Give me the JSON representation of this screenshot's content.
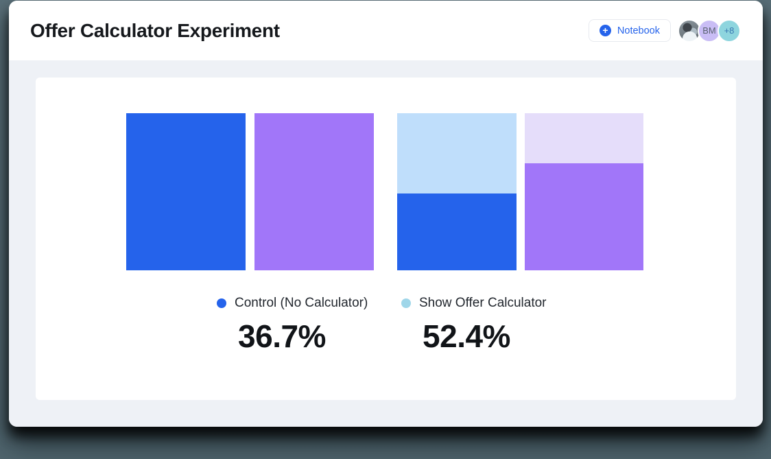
{
  "header": {
    "title": "Offer Calculator Experiment",
    "notebook_button": {
      "label": "Notebook",
      "icon": "plus-circle-icon",
      "icon_glyph": "+",
      "accent_color": "#2563eb"
    },
    "avatars": [
      {
        "kind": "photo-avatar",
        "label": ""
      },
      {
        "kind": "initials-avatar",
        "label": "BM",
        "bg": "#c9bdf5",
        "fg": "#596270"
      },
      {
        "kind": "overflow-avatar",
        "label": "+8",
        "bg": "#8ed5de",
        "fg": "#3878b2"
      }
    ]
  },
  "chart_data": {
    "type": "bar",
    "title": "",
    "orientation": "vertical",
    "gridlines": false,
    "axes_visible": false,
    "legend_position": "below",
    "bars": [
      {
        "id": "control-total",
        "segments_bottom_up": [
          {
            "color": "#2563eb",
            "fraction": 1.0
          }
        ]
      },
      {
        "id": "variant-total",
        "segments_bottom_up": [
          {
            "color": "#a176f9",
            "fraction": 1.0
          }
        ]
      },
      {
        "id": "control-split",
        "segments_bottom_up": [
          {
            "color": "#2563eb",
            "fraction": 0.49
          },
          {
            "color": "#bfdefb",
            "fraction": 0.51
          }
        ]
      },
      {
        "id": "variant-split",
        "segments_bottom_up": [
          {
            "color": "#a176f9",
            "fraction": 0.68
          },
          {
            "color": "#e5ddfa",
            "fraction": 0.32
          }
        ]
      }
    ],
    "legend": [
      {
        "label": "Control (No Calculator)",
        "color": "#2563eb"
      },
      {
        "label": "Show Offer Calculator",
        "color": "#9fd6e9"
      }
    ],
    "metrics": [
      {
        "group": "Control (No Calculator)",
        "value": "36.7%"
      },
      {
        "group": "Show Offer Calculator",
        "value": "52.4%"
      }
    ]
  }
}
